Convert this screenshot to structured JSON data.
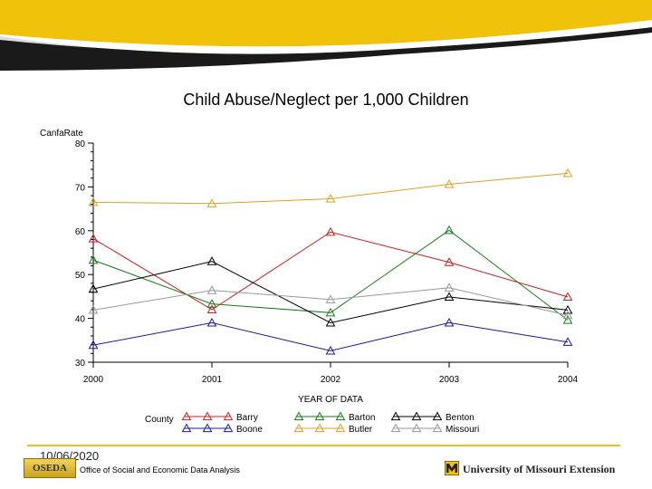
{
  "footer": {
    "date": "10/06/2020",
    "logo_text": "OSEDA",
    "office": "Office of Social and Economic Data Analysis",
    "extension": "University of Missouri Extension"
  },
  "chart_data": {
    "type": "line",
    "title": "Child Abuse/Neglect per 1,000 Children",
    "ylabel": "CanfaRate",
    "xlabel": "YEAR OF DATA",
    "legend_title": "County",
    "x": [
      2000,
      2001,
      2002,
      2003,
      2004
    ],
    "xticks": [
      "2000",
      "2001",
      "2002",
      "2003",
      "2004"
    ],
    "yticks": [
      "30",
      "40",
      "50",
      "60",
      "70",
      "80"
    ],
    "ylim": [
      30,
      80
    ],
    "series": [
      {
        "name": "Barry",
        "color": "#cc2020",
        "values": [
          58.2,
          42.0,
          59.7,
          52.8,
          44.9
        ]
      },
      {
        "name": "Barton",
        "color": "#1a7a1a",
        "values": [
          53.3,
          43.3,
          41.3,
          60.1,
          39.6
        ]
      },
      {
        "name": "Benton",
        "color": "#000000",
        "values": [
          46.7,
          53.0,
          39.0,
          44.9,
          41.9
        ]
      },
      {
        "name": "Boone",
        "color": "#1a1aa0",
        "values": [
          33.9,
          39.0,
          32.6,
          39.0,
          34.6
        ]
      },
      {
        "name": "Butler",
        "color": "#e0a020",
        "values": [
          66.5,
          66.2,
          67.3,
          70.6,
          73.1
        ]
      },
      {
        "name": "Missouri",
        "color": "#999999",
        "values": [
          41.9,
          46.4,
          44.3,
          47.0,
          40.7
        ]
      }
    ]
  }
}
